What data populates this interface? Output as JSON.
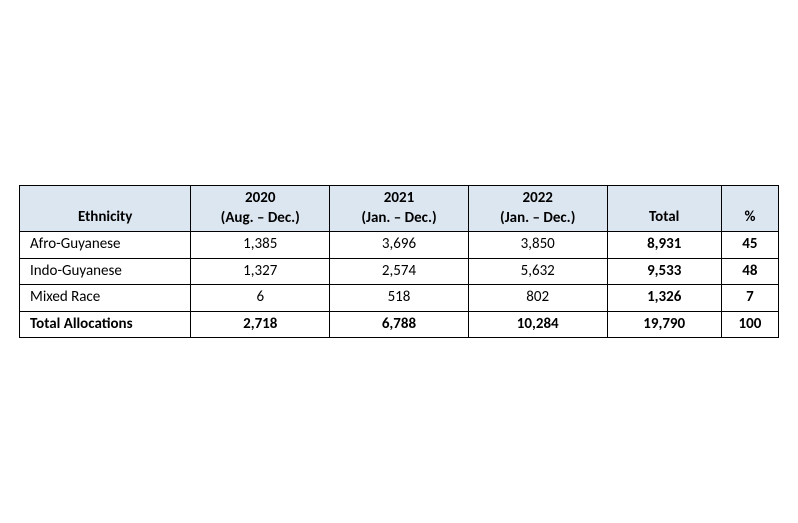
{
  "table": {
    "headers": {
      "ethnicity": "Ethnicity",
      "y2020_year": "2020",
      "y2020_period": "(Aug. – Dec.)",
      "y2021_year": "2021",
      "y2021_period": "(Jan. – Dec.)",
      "y2022_year": "2022",
      "y2022_period": "(Jan. – Dec.)",
      "total": "Total",
      "pct": "%"
    },
    "rows": [
      {
        "label": "Afro-Guyanese",
        "y2020": "1,385",
        "y2021": "3,696",
        "y2022": "3,850",
        "total": "8,931",
        "pct": "45"
      },
      {
        "label": "Indo-Guyanese",
        "y2020": "1,327",
        "y2021": "2,574",
        "y2022": "5,632",
        "total": "9,533",
        "pct": "48"
      },
      {
        "label": "Mixed Race",
        "y2020": "6",
        "y2021": "518",
        "y2022": "802",
        "total": "1,326",
        "pct": "7"
      }
    ],
    "total_row": {
      "label": "Total Allocations",
      "y2020": "2,718",
      "y2021": "6,788",
      "y2022": "10,284",
      "total": "19,790",
      "pct": "100"
    },
    "colors": {
      "header_bg": "#dce6f1",
      "border": "#000000",
      "text": "#000000",
      "page_bg": "#ffffff"
    },
    "typography": {
      "font_family": "Calibri",
      "font_size_pt": 11,
      "header_weight": "bold",
      "total_weight": "bold"
    }
  }
}
